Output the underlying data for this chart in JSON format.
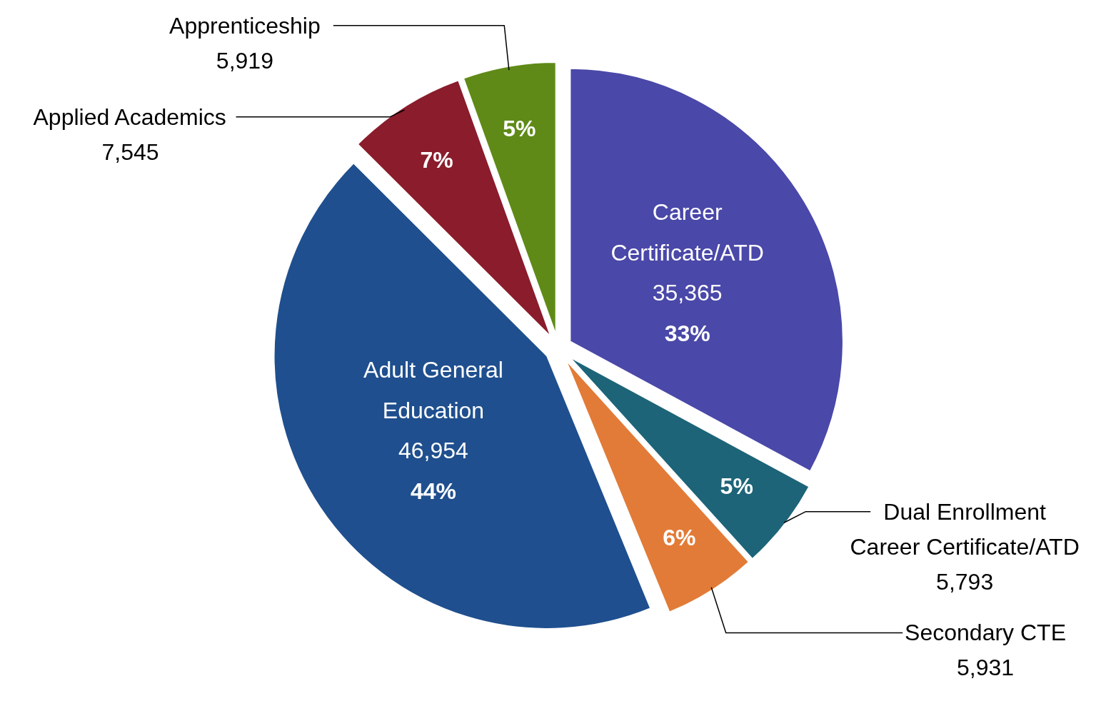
{
  "chart_data": {
    "type": "pie",
    "categories": [
      "Career\nCertificate/ATD",
      "Dual Enrollment\nCareer Certificate/ATD",
      "Secondary CTE",
      "Adult General\nEducation",
      "Applied Academics",
      "Apprenticeship"
    ],
    "values": [
      35365,
      5793,
      5931,
      46954,
      7545,
      5919
    ],
    "colors": [
      "#4a48a8",
      "#1d6478",
      "#e27b37",
      "#1f4f8e",
      "#8a1c2c",
      "#5f8a17"
    ],
    "value_labels": [
      "35,365",
      "5,793",
      "5,931",
      "46,954",
      "7,545",
      "5,919"
    ],
    "annotations": [
      "33%",
      "5%",
      "6%",
      "44%",
      "7%",
      "5%"
    ]
  }
}
